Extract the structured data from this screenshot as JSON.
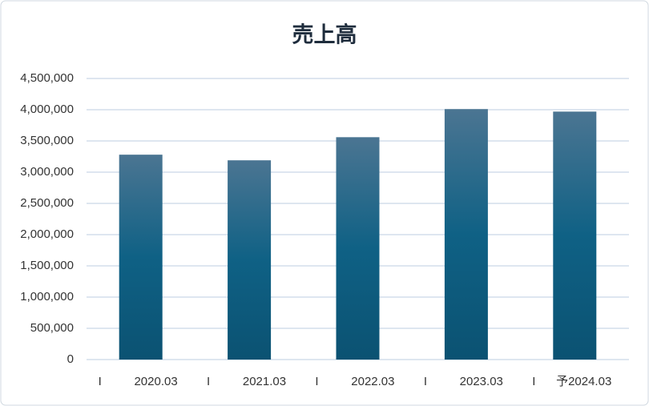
{
  "chart_data": {
    "type": "bar",
    "title": "売上高",
    "categories": [
      [
        "I",
        "2020.03"
      ],
      [
        "I",
        "2021.03"
      ],
      [
        "I",
        "2022.03"
      ],
      [
        "I",
        "2023.03"
      ],
      [
        "I",
        "予2024.03"
      ]
    ],
    "values": [
      3280000,
      3190000,
      3560000,
      4010000,
      3970000
    ],
    "gradient": [
      "#4b7592",
      "#0f6185",
      "#0b5272"
    ],
    "ylim": [
      0,
      4500000
    ],
    "yticks": [
      0,
      {
        "value": 500000,
        "label": "500,000"
      },
      {
        "value": 1000000,
        "label": "1,000,000"
      },
      {
        "value": 1500000,
        "label": "1,500,000"
      },
      {
        "value": 2000000,
        "label": "2,000,000"
      },
      {
        "value": 2500000,
        "label": "2,500,000"
      },
      {
        "value": 3000000,
        "label": "3,000,000"
      },
      {
        "value": 3500000,
        "label": "3,500,000"
      },
      {
        "value": 4000000,
        "label": "4,000,000"
      },
      {
        "value": 4500000,
        "label": "4,500,000"
      }
    ],
    "grid": true
  }
}
